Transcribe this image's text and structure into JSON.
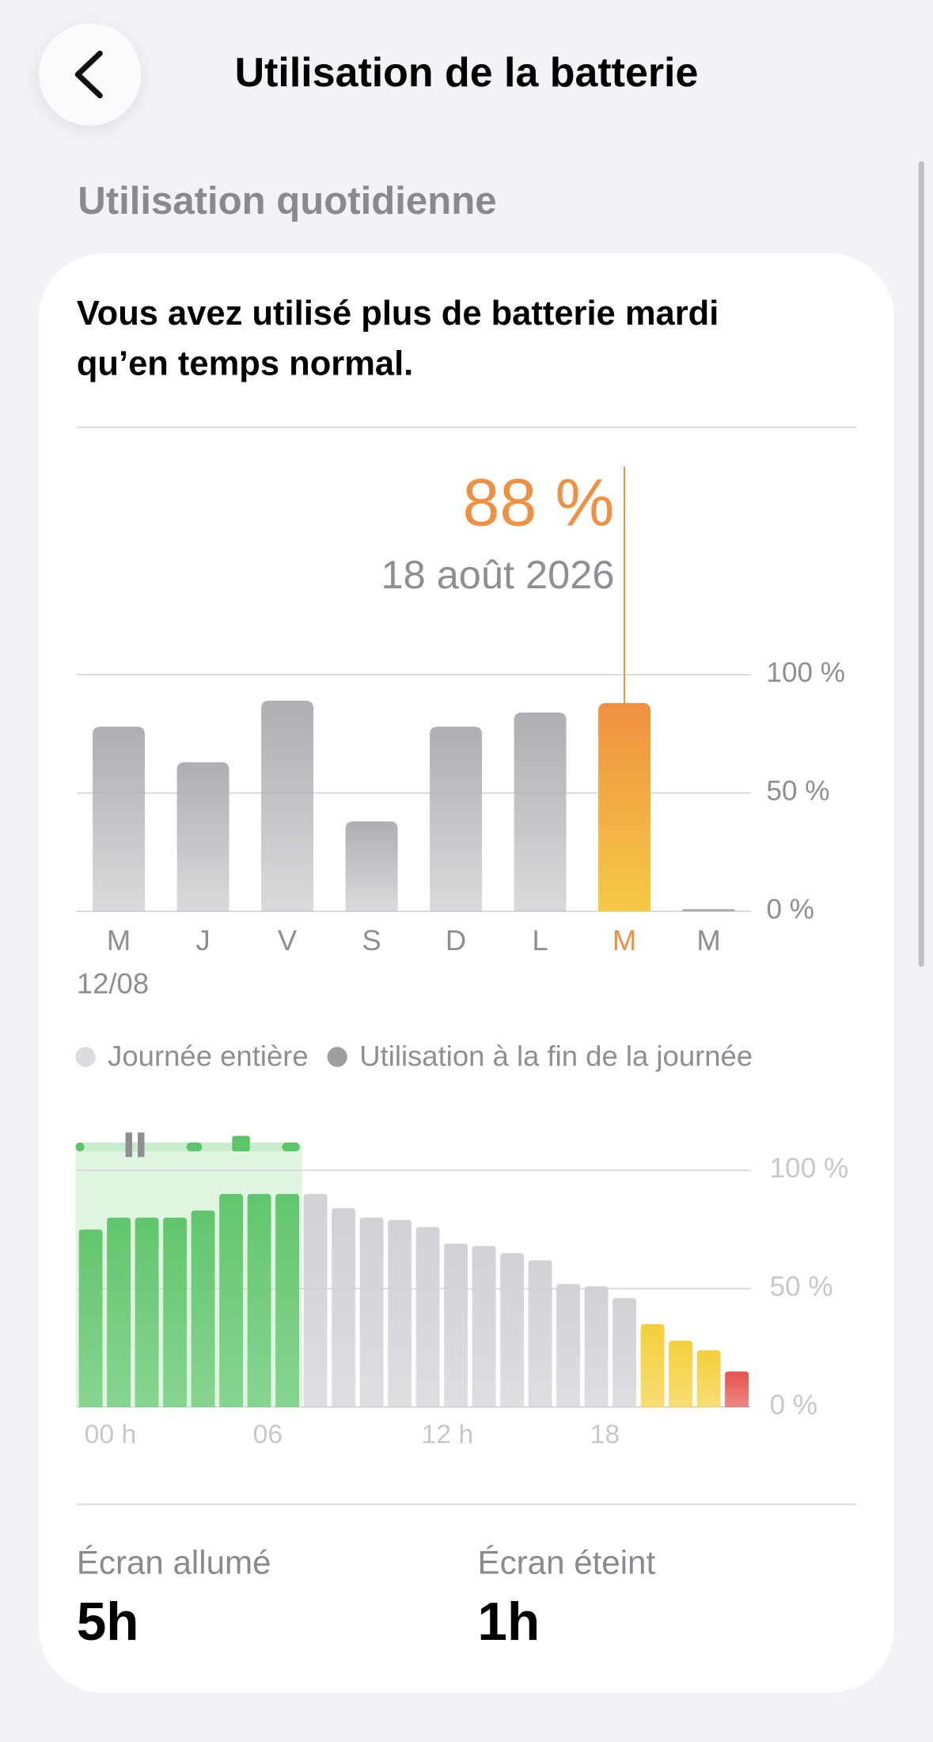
{
  "header": {
    "title": "Utilisation de la batterie"
  },
  "section": {
    "title": "Utilisation quotidienne"
  },
  "card": {
    "message": [
      "Vous avez utilisé plus de batterie mardi",
      "qu’en temps normal."
    ]
  },
  "chart_data": [
    {
      "type": "bar",
      "categories": [
        "M",
        "J",
        "V",
        "S",
        "D",
        "L",
        "M",
        "M"
      ],
      "values": [
        78,
        63,
        89,
        38,
        78,
        84,
        88,
        0
      ],
      "value_labels": [
        null,
        null,
        null,
        null,
        null,
        null,
        "88 %",
        null
      ],
      "highlight_index": 6,
      "highlight_date": "18 août 2026",
      "first_date": "12/08",
      "color": "#aeaeb3",
      "highlight_colors": [
        "#ef9140",
        "#f5ca46"
      ],
      "ylim": [
        0,
        100
      ],
      "yticks": [
        {
          "value": 0,
          "label": "0 %"
        },
        {
          "value": 50,
          "label": "50 %"
        },
        {
          "value": 100,
          "label": "100 %"
        }
      ],
      "grid": true
    },
    {
      "type": "bar",
      "x": [
        0,
        1,
        2,
        3,
        4,
        5,
        6,
        7,
        8,
        9,
        10,
        11,
        12,
        13,
        14,
        15,
        16,
        17,
        18,
        19,
        20,
        21,
        22,
        23
      ],
      "values": [
        75,
        80,
        80,
        80,
        83,
        90,
        90,
        90,
        90,
        84,
        80,
        79,
        76,
        69,
        68,
        65,
        62,
        52,
        51,
        46,
        35,
        28,
        24,
        15
      ],
      "colors": [
        "#62c66e",
        "#62c66e",
        "#62c66e",
        "#62c66e",
        "#62c66e",
        "#62c66e",
        "#62c66e",
        "#62c66e",
        "#d1d1d6",
        "#d1d1d6",
        "#d1d1d6",
        "#d1d1d6",
        "#d1d1d6",
        "#d1d1d6",
        "#d1d1d6",
        "#d1d1d6",
        "#d1d1d6",
        "#d1d1d6",
        "#d1d1d6",
        "#d1d1d6",
        "#f4cf3a",
        "#f4cf3a",
        "#f4cf3a",
        "#e5534b"
      ],
      "xlim": [
        0,
        24
      ],
      "xticks": [
        {
          "value": 0,
          "label": "00 h"
        },
        {
          "value": 6,
          "label": "06"
        },
        {
          "value": 12,
          "label": "12 h"
        },
        {
          "value": 18,
          "label": "18"
        }
      ],
      "ylim": [
        0,
        100
      ],
      "yticks": [
        {
          "value": 0,
          "label": "0 %"
        },
        {
          "value": 50,
          "label": "50 %"
        },
        {
          "value": 100,
          "label": "100 %"
        }
      ],
      "grid": true,
      "legend": [
        {
          "name": "Journée entière",
          "color": "#dcdce0"
        },
        {
          "name": "Utilisation à la fin de la journée",
          "color": "#9d9da2"
        }
      ]
    }
  ],
  "stats": [
    {
      "label": "Écran allumé",
      "value": "5h"
    },
    {
      "label": "Écran éteint",
      "value": "1h"
    }
  ]
}
